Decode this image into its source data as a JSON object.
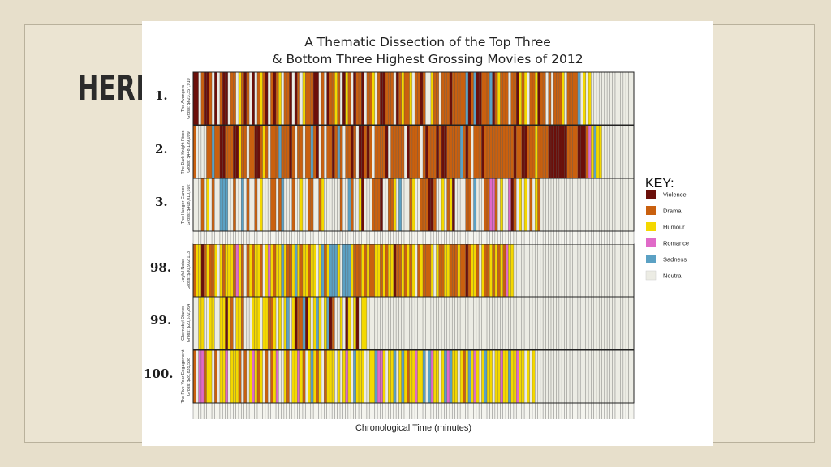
{
  "slide": {
    "heading": "HERE"
  },
  "chart_data": {
    "type": "heatmap",
    "title": "A Thematic Dissection of the Top Three",
    "subtitle": "& Bottom Three Highest Grossing Movies of  2012",
    "xlabel": "Chronological Time (minutes)",
    "key_title": "KEY:",
    "categories": [
      {
        "name": "Violence",
        "color": "#6b0f0a"
      },
      {
        "name": "Drama",
        "color": "#c9600f"
      },
      {
        "name": "Humour",
        "color": "#f4d800"
      },
      {
        "name": "Romance",
        "color": "#e06ac8"
      },
      {
        "name": "Sadness",
        "color": "#5ba1c4"
      },
      {
        "name": "Neutral",
        "color": "#ecece4"
      }
    ],
    "timeline_minutes": 165,
    "movies": [
      {
        "rank": "1.",
        "name": "The Avengers",
        "gross": "Gross: $623,357,910",
        "sequence": "VVNDVVDNVNDVVNDDNHDVDNVNDHDVNDVDHNDDVNVDNHDDDVVNDNVDDHDNVHDNVDDVNDDHNDVVDDDNVDHDDHNDDVDNNHDDNDDDVDDDDDSVDSVVDDDSVDHDDDNDDVHDHNDDHVDDNDNDDDHNDDDDSNHNHNN"
      },
      {
        "rank": "2.",
        "name": "The Dark Knight Rises",
        "gross": "Gross: $448,139,099",
        "sequence": "DNNNNDDSDDVVDDDVVHDDNDDVVDHDNDDDSDDDVDNDDNDDSDVNDNDDVDSDNDDVDNVVDVDNDDDDVNDDDDDNVDDDDNDVDDDVDVVDDDDDSDVDNDDDVDDDDDDDDDDDVDDVVDDDHDDDDVVVVVVVDDDDVVVDRHSHH"
      },
      {
        "rank": "3.",
        "name": "The Hunger Games",
        "gross": "Gross: $408,010,692",
        "sequence": "NNNDNHNDNNSSSNNDNNSNDNNDNHNNNDDNDSNNNDNNHNNDDNNDHNNNNNNDNNSDNNHVNNNDDDVNNDDHNSNNNDHNNDDDVVDNNHNDHVNNNNDDNSNNNDDRRDNHNNRVDNHNHNDNHDNNNN"
      },
      {
        "rank": "98.",
        "name": "Joyful Noise",
        "gross": "Gross: $30,932,113",
        "sequence": "DHHVDHDDHNHDHHHDRHDNDHDHHDNHRHDHHSHDDHSHDHHDHHNHSDHSSSHNSSSHDDDHDHDDHHDHDHHVDDHDHDHNDHDDDHNHDDHHDDDHDDVDHHDNHDDHDHDHDRHHN"
      },
      {
        "rank": "99.",
        "name": "Chernobyl Diaries",
        "gross": "Gross: $20,572,264",
        "sequence": "NNHHNNHHNNHHVHDNHHDNNNHHHNHHDDHNHNHSNHVDDSVHNHSHNHSVDNNHNVHNHVNHH"
      },
      {
        "rank": "100.",
        "name": "The Five-Year Engagement",
        "gross": "Gross: $28,835,538",
        "sequence": "DNRRDHHNDNHHRNHHHDNDNHRHDHNDNDHRNNHDNHHRHDNHSHDHNDHHHNHNHRHNSHHHNNHHSRRHNHHSNHSHDHHRHHSNSRHHNHSRSHHNHDHSHRHNHSHHNHHRHHSHHRHHNHNH"
      }
    ]
  }
}
